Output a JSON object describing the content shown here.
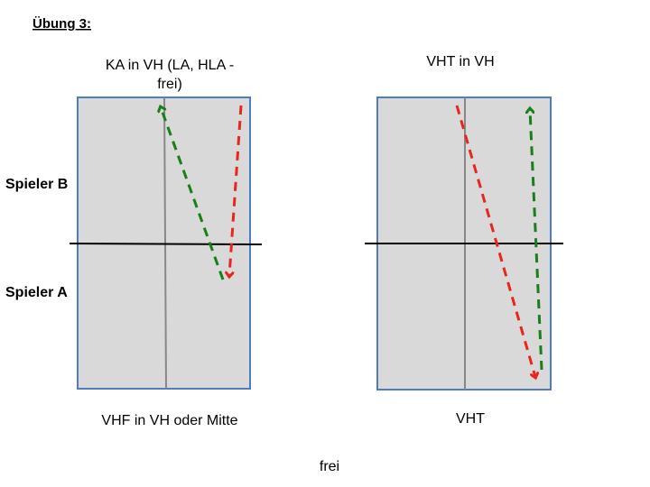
{
  "header": {
    "title": "Übung 3:"
  },
  "players": {
    "top": "Spieler B",
    "bottom": "Spieler A"
  },
  "panels": [
    {
      "top_lines": [
        "KA in VH (LA, HLA -",
        "frei)"
      ],
      "bottom": "VHF in VH oder Mitte"
    },
    {
      "top_lines": [
        "VHT in VH"
      ],
      "bottom": "VHT"
    }
  ],
  "footer": "frei"
}
